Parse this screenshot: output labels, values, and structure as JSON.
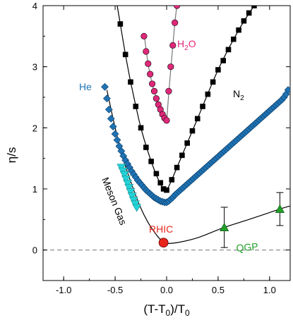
{
  "chart_data": {
    "type": "scatter",
    "xlabel_main": "(T-T",
    "xlabel_sub": "0",
    "xlabel_mid": ")/T",
    "xlabel_sub2": "0",
    "ylabel": "η/s",
    "xlim": [
      -1.2,
      1.2
    ],
    "ylim": [
      -0.5,
      4
    ],
    "xticks": [
      -1.0,
      -0.5,
      0.0,
      0.5,
      1.0
    ],
    "xtick_labels": [
      "-1.0",
      "-0.5",
      "0.0",
      "0.5",
      "1.0"
    ],
    "yticks": [
      0,
      1,
      2,
      3,
      4
    ],
    "ytick_labels": [
      "0",
      "1",
      "2",
      "3",
      "4"
    ],
    "reference_line_y": 0,
    "colors": {
      "H2O": "#e0287a",
      "N2": "#000000",
      "He": "#1f73b4",
      "Meson": "#22d3d8",
      "RHIC": "#e8261c",
      "QGP": "#22a02a"
    },
    "labels": {
      "H2O_main": "H",
      "H2O_sub": "2",
      "H2O_end": "O",
      "N2_main": "N",
      "N2_sub": "2",
      "He": "He",
      "Meson": "Meson Gas",
      "RHIC": "RHIC",
      "QGP": "QGP"
    },
    "series": [
      {
        "key": "H2O",
        "marker": "circle",
        "x": [
          -0.22,
          -0.2,
          -0.18,
          -0.16,
          -0.14,
          -0.12,
          -0.1,
          -0.08,
          -0.06,
          -0.04,
          -0.02,
          0.0,
          0.02,
          0.04,
          0.06,
          0.08,
          0.1
        ],
        "y": [
          3.5,
          3.25,
          3.05,
          2.88,
          2.72,
          2.6,
          2.48,
          2.38,
          2.3,
          2.22,
          2.16,
          2.12,
          2.6,
          3.0,
          3.35,
          3.72,
          4.0
        ]
      },
      {
        "key": "N2",
        "marker": "square",
        "x": [
          -0.45,
          -0.4,
          -0.35,
          -0.3,
          -0.25,
          -0.2,
          -0.15,
          -0.1,
          -0.06,
          -0.03,
          0.0,
          0.05,
          0.1,
          0.15,
          0.2,
          0.25,
          0.3,
          0.35,
          0.4,
          0.45,
          0.5,
          0.55,
          0.6,
          0.65,
          0.7,
          0.75,
          0.8,
          0.85
        ],
        "y": [
          3.7,
          3.2,
          2.75,
          2.35,
          2.0,
          1.68,
          1.45,
          1.25,
          1.1,
          1.0,
          0.98,
          1.15,
          1.35,
          1.55,
          1.75,
          1.95,
          2.15,
          2.35,
          2.55,
          2.75,
          2.95,
          3.1,
          3.28,
          3.45,
          3.6,
          3.75,
          3.88,
          4.0
        ]
      },
      {
        "key": "He",
        "marker": "diamond",
        "x": [
          -0.6,
          -0.58,
          -0.56,
          -0.54,
          -0.52,
          -0.5,
          -0.48,
          -0.46,
          -0.44,
          -0.42,
          -0.4,
          -0.38,
          -0.36,
          -0.34,
          -0.32,
          -0.3,
          -0.28,
          -0.26,
          -0.24,
          -0.22,
          -0.2,
          -0.18,
          -0.16,
          -0.14,
          -0.12,
          -0.1,
          -0.08,
          -0.06,
          -0.04,
          -0.02,
          0.0,
          0.02,
          0.04,
          0.06,
          0.08,
          0.1,
          0.12,
          0.14,
          0.16,
          0.18,
          0.2,
          0.22,
          0.24,
          0.26,
          0.28,
          0.3,
          0.32,
          0.34,
          0.36,
          0.38,
          0.4,
          0.42,
          0.44,
          0.46,
          0.48,
          0.5,
          0.52,
          0.54,
          0.56,
          0.58,
          0.6,
          0.62,
          0.64,
          0.66,
          0.68,
          0.7,
          0.72,
          0.74,
          0.76,
          0.78,
          0.8,
          0.82,
          0.84,
          0.86,
          0.88,
          0.9,
          0.92,
          0.94,
          0.96,
          0.98,
          1.0,
          1.02,
          1.04,
          1.06,
          1.08,
          1.1,
          1.12,
          1.14,
          1.16,
          1.18
        ],
        "y": [
          2.67,
          2.48,
          2.3,
          2.15,
          2.02,
          1.9,
          1.8,
          1.7,
          1.62,
          1.54,
          1.47,
          1.41,
          1.35,
          1.29,
          1.24,
          1.19,
          1.14,
          1.1,
          1.06,
          1.02,
          0.98,
          0.95,
          0.92,
          0.89,
          0.86,
          0.84,
          0.82,
          0.8,
          0.79,
          0.78,
          0.78,
          0.8,
          0.83,
          0.86,
          0.9,
          0.93,
          0.96,
          0.99,
          1.02,
          1.05,
          1.08,
          1.11,
          1.14,
          1.17,
          1.2,
          1.23,
          1.26,
          1.29,
          1.32,
          1.35,
          1.38,
          1.41,
          1.44,
          1.47,
          1.5,
          1.53,
          1.56,
          1.59,
          1.62,
          1.65,
          1.68,
          1.71,
          1.74,
          1.77,
          1.8,
          1.83,
          1.86,
          1.89,
          1.92,
          1.95,
          1.98,
          2.01,
          2.04,
          2.07,
          2.1,
          2.13,
          2.16,
          2.19,
          2.22,
          2.25,
          2.28,
          2.31,
          2.34,
          2.37,
          2.4,
          2.43,
          2.46,
          2.5,
          2.55,
          2.62
        ]
      },
      {
        "key": "Meson",
        "marker": "triangle-down",
        "x": [
          -0.44,
          -0.425,
          -0.41,
          -0.395,
          -0.38,
          -0.365,
          -0.35,
          -0.335,
          -0.32,
          -0.305,
          -0.29
        ],
        "y": [
          1.36,
          1.3,
          1.24,
          1.17,
          1.1,
          1.03,
          0.96,
          0.89,
          0.82,
          0.76,
          0.7
        ]
      },
      {
        "key": "RHIC",
        "marker": "circle-large",
        "x": [
          -0.03
        ],
        "y": [
          0.12
        ]
      },
      {
        "key": "QGP",
        "marker": "triangle-up",
        "x": [
          0.56,
          1.1
        ],
        "y": [
          0.37,
          0.67
        ],
        "err": [
          0.33,
          0.27
        ]
      }
    ],
    "curves": {
      "H2O": {
        "x": [
          -0.22,
          -0.18,
          -0.14,
          -0.1,
          -0.06,
          -0.03,
          -0.01,
          0.0,
          0.02,
          0.05,
          0.08,
          0.1
        ],
        "y": [
          3.55,
          3.05,
          2.72,
          2.48,
          2.3,
          2.19,
          2.14,
          2.12,
          2.55,
          3.15,
          3.72,
          4.0
        ]
      },
      "N2_left": {
        "x": [
          -0.35,
          -0.4,
          -0.45,
          -0.48,
          -0.5
        ],
        "y": [
          2.75,
          3.2,
          3.7,
          4.0,
          4.2
        ]
      },
      "N2": {
        "x": [
          -0.35,
          -0.25,
          -0.15,
          -0.08,
          -0.03,
          0.0,
          0.05,
          0.15,
          0.3,
          0.5,
          0.7,
          0.85
        ],
        "y": [
          2.75,
          2.0,
          1.45,
          1.15,
          1.0,
          0.98,
          1.15,
          1.55,
          2.15,
          2.95,
          3.6,
          4.0
        ]
      },
      "Meson_line": {
        "x": [
          -0.58,
          -0.5,
          -0.42,
          -0.34,
          -0.26,
          -0.18,
          -0.1,
          -0.05
        ],
        "y": [
          2.62,
          2.0,
          1.48,
          1.08,
          0.72,
          0.45,
          0.25,
          0.15
        ]
      },
      "QGP_line": {
        "x": [
          -0.05,
          0.1,
          0.3,
          0.56,
          0.8,
          1.1,
          1.2
        ],
        "y": [
          0.1,
          0.12,
          0.2,
          0.37,
          0.5,
          0.67,
          0.72
        ]
      }
    }
  }
}
